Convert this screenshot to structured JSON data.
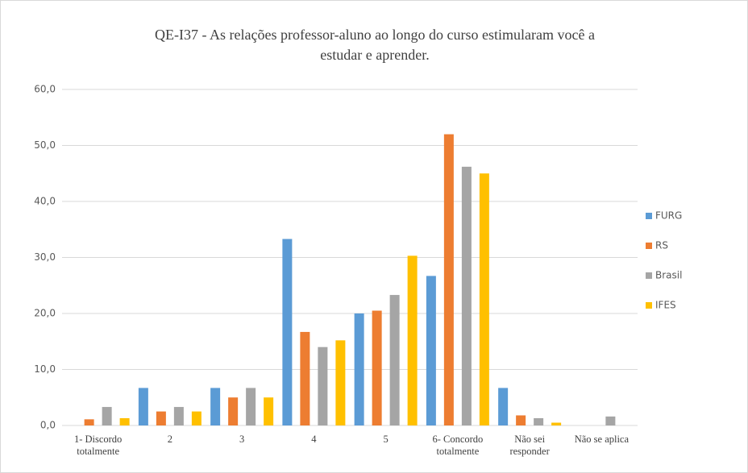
{
  "chart_data": {
    "type": "bar",
    "title": "QE-I37 - As relações professor-aluno ao longo do curso estimularam você a estudar e aprender.",
    "categories": [
      "1- Discordo totalmente",
      "2",
      "3",
      "4",
      "5",
      "6- Concordo totalmente",
      "Não sei responder",
      "Não se aplica"
    ],
    "series": [
      {
        "name": "FURG",
        "color": "#5b9bd5",
        "values": [
          0,
          6.7,
          6.7,
          33.3,
          20.0,
          26.7,
          6.7,
          0
        ]
      },
      {
        "name": "RS",
        "color": "#ed7d31",
        "values": [
          1.1,
          2.5,
          5.0,
          16.7,
          20.5,
          52.0,
          1.8,
          0
        ]
      },
      {
        "name": "Brasil",
        "color": "#a5a5a5",
        "values": [
          3.3,
          3.3,
          6.7,
          14.0,
          23.3,
          46.2,
          1.3,
          1.6
        ]
      },
      {
        "name": "IFES",
        "color": "#ffc000",
        "values": [
          1.3,
          2.5,
          5.0,
          15.2,
          30.3,
          45.0,
          0.5,
          0
        ]
      }
    ],
    "ylim": [
      0,
      60
    ],
    "yticks": [
      {
        "value": 0,
        "label": "0,0"
      },
      {
        "value": 10,
        "label": "10,0"
      },
      {
        "value": 20,
        "label": "20,0"
      },
      {
        "value": 30,
        "label": "30,0"
      },
      {
        "value": 40,
        "label": "40,0"
      },
      {
        "value": 50,
        "label": "50,0"
      },
      {
        "value": 60,
        "label": "60,0"
      }
    ],
    "grid": true,
    "legend": "right"
  }
}
